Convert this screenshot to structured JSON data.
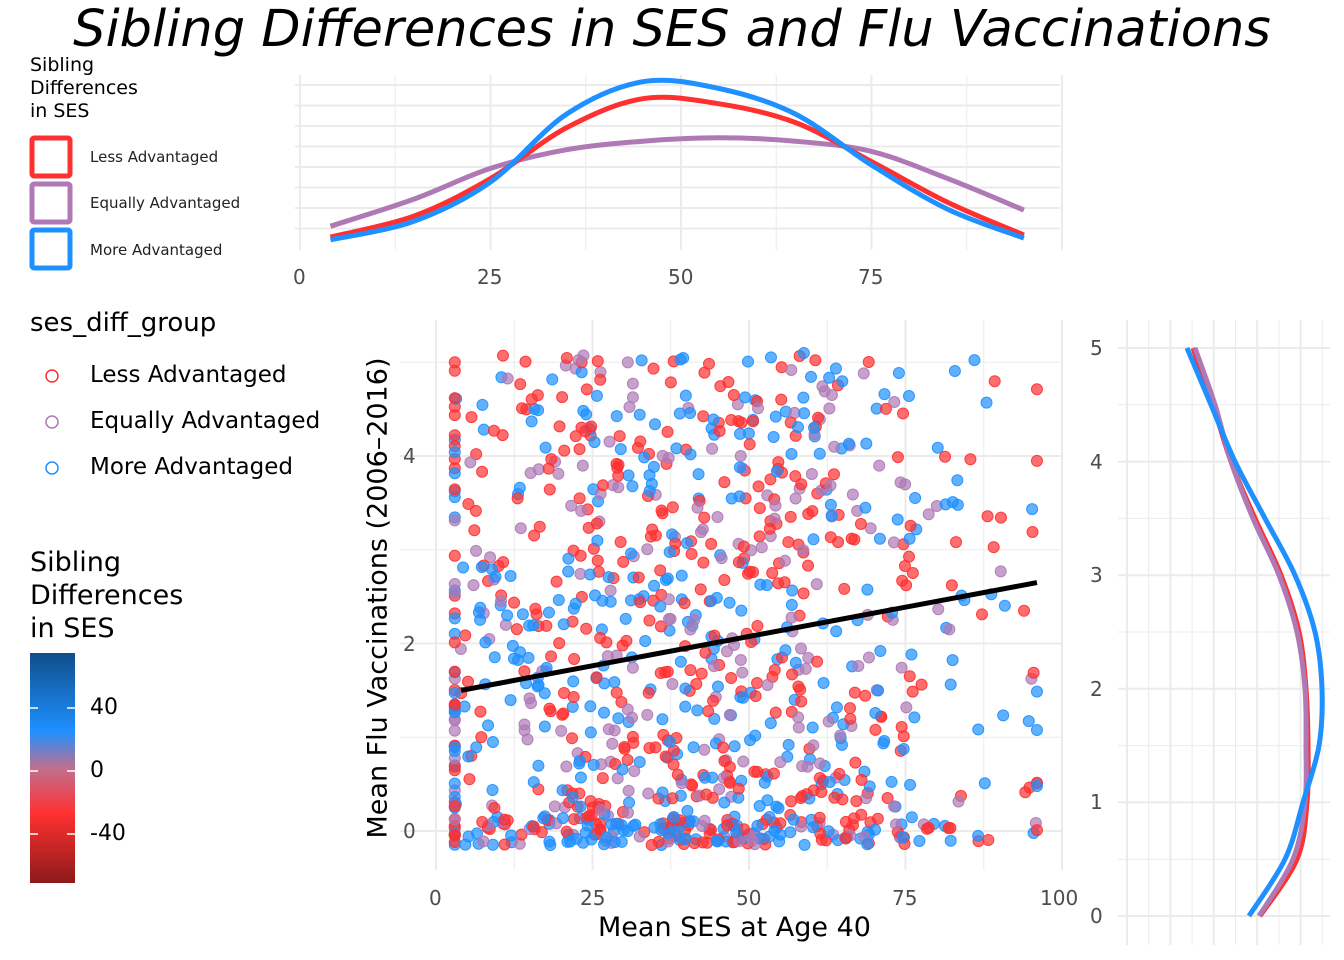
{
  "title": "Sibling Differences in SES and Flu Vaccinations",
  "colors": {
    "less": "#FF3030",
    "equal": "#AE79B5",
    "more": "#1E90FF",
    "line": "#000000",
    "grid": "#EBEBEB"
  },
  "top_legend": {
    "title": "Sibling\nDifferences\nin SES",
    "items": [
      "Less Advantaged",
      "Equally Advantaged",
      "More Advantaged"
    ]
  },
  "group_legend": {
    "title": "ses_diff_group",
    "items": [
      "Less Advantaged",
      "Equally Advantaged",
      "More Advantaged"
    ]
  },
  "colorbar": {
    "title": "Sibling\nDifferences\nin SES",
    "ticks": [
      "40",
      "0",
      "-40"
    ],
    "range": [
      -70,
      75
    ],
    "tick_values": [
      40,
      0,
      -40
    ]
  },
  "chart_data": [
    {
      "type": "area",
      "name": "top-marginal-density",
      "xlabel": "",
      "ylabel": "",
      "xlim": [
        0,
        100
      ],
      "xticks": [
        "0",
        "25",
        "50",
        "75"
      ],
      "x": [
        4,
        15,
        25,
        35,
        45,
        55,
        65,
        75,
        85,
        95
      ],
      "series": [
        {
          "name": "Less Advantaged",
          "values": [
            0.076,
            0.2,
            0.42,
            0.72,
            0.89,
            0.86,
            0.75,
            0.52,
            0.28,
            0.088
          ]
        },
        {
          "name": "Equally Advantaged",
          "values": [
            0.14,
            0.3,
            0.48,
            0.59,
            0.64,
            0.66,
            0.64,
            0.58,
            0.42,
            0.235
          ]
        },
        {
          "name": "More Advantaged",
          "values": [
            0.06,
            0.17,
            0.4,
            0.8,
            0.99,
            0.95,
            0.8,
            0.5,
            0.24,
            0.07
          ]
        }
      ]
    },
    {
      "type": "scatter",
      "name": "main-scatter",
      "xlabel": "Mean SES at Age 40",
      "ylabel": "Mean Flu Vaccinations (2006–2016)",
      "xlim": [
        0,
        100
      ],
      "ylim": [
        -0.2,
        5.2
      ],
      "xticks": [
        "0",
        "25",
        "50",
        "75",
        "100"
      ],
      "yticks": [
        "0",
        "2",
        "4"
      ],
      "n_points": 1100,
      "groups": [
        "Less Advantaged",
        "Equally Advantaged",
        "More Advantaged"
      ],
      "regression_line": {
        "x": [
          4,
          96
        ],
        "y": [
          1.5,
          2.65
        ]
      }
    },
    {
      "type": "line",
      "name": "right-marginal-density",
      "yticks": [
        "0",
        "1",
        "2",
        "3",
        "4",
        "5"
      ],
      "y": [
        0,
        0.5,
        1,
        1.5,
        2,
        2.5,
        3,
        3.5,
        4,
        4.5,
        5
      ],
      "series": [
        {
          "name": "Less Advantaged",
          "values": [
            0.675,
            0.86,
            0.91,
            0.915,
            0.905,
            0.87,
            0.78,
            0.65,
            0.53,
            0.44,
            0.34
          ]
        },
        {
          "name": "Equally Advantaged",
          "values": [
            0.67,
            0.84,
            0.9,
            0.905,
            0.9,
            0.86,
            0.77,
            0.64,
            0.53,
            0.45,
            0.35
          ]
        },
        {
          "name": "More Advantaged",
          "values": [
            0.62,
            0.8,
            0.89,
            0.97,
            0.985,
            0.95,
            0.85,
            0.7,
            0.55,
            0.43,
            0.31
          ]
        }
      ]
    }
  ]
}
